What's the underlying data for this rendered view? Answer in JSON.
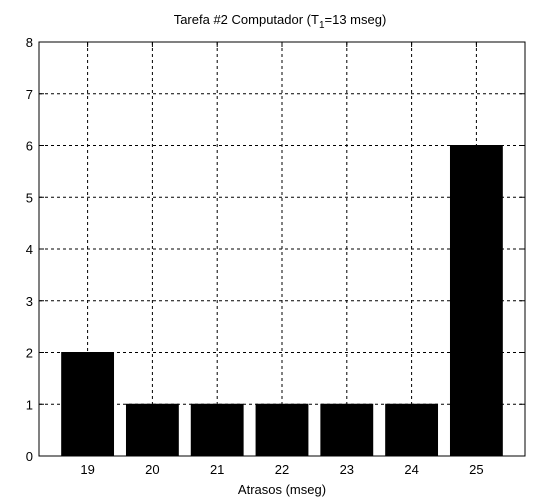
{
  "chart_data": {
    "type": "bar",
    "title": {
      "prefix": "Tarefa #2 Computador (T",
      "subscript": "1",
      "suffix": "=13 mseg)"
    },
    "xlabel": "Atrasos (mseg)",
    "ylabel": "",
    "categories": [
      "19",
      "20",
      "21",
      "22",
      "23",
      "24",
      "25"
    ],
    "values": [
      2,
      1,
      1,
      1,
      1,
      1,
      6
    ],
    "ylim": [
      0,
      8
    ],
    "yticks": [
      "0",
      "1",
      "2",
      "3",
      "4",
      "5",
      "6",
      "7",
      "8"
    ],
    "grid": true,
    "grid_style": "dotted",
    "bar_color": "#000000",
    "background": "#ffffff"
  }
}
